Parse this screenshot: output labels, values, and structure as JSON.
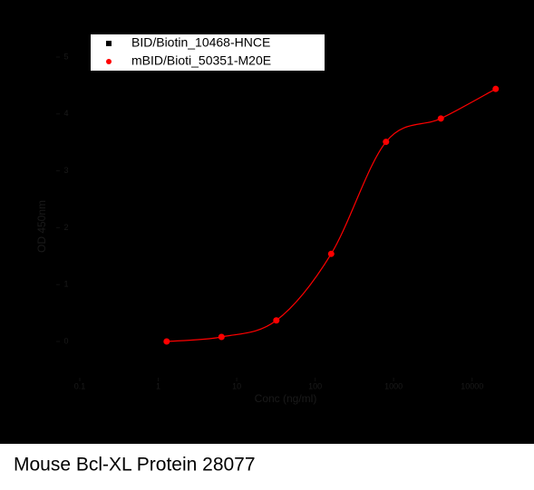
{
  "chart_data": {
    "type": "scatter",
    "title": "Mouse Bcl-XL Protein 28077",
    "x_label": "Conc (ng/ml)",
    "y_label": "OD 450nm",
    "log_x": true,
    "xlim": [
      0.1,
      30000
    ],
    "xticks": [
      0.1,
      1,
      10,
      100,
      1000,
      10000
    ],
    "ylim": [
      0,
      5
    ],
    "yticks": [
      0,
      1,
      2,
      3,
      4,
      5
    ],
    "series": [
      {
        "name": "BID/Biotin_10468-HNCE",
        "color": "#000000",
        "marker": "square",
        "x": [
          1.28,
          6.4,
          32,
          160,
          800,
          4000,
          20000
        ],
        "values": [
          0.0,
          0.08,
          0.37,
          1.54,
          3.51,
          3.92,
          4.44
        ]
      },
      {
        "name": "mBID/Bioti_50351-M20E",
        "color": "#ff0000",
        "marker": "circle",
        "x": [
          1.28,
          6.4,
          32,
          160,
          800,
          4000,
          20000
        ],
        "values": [
          0.0,
          0.08,
          0.37,
          1.54,
          3.51,
          3.92,
          4.44
        ]
      }
    ]
  }
}
